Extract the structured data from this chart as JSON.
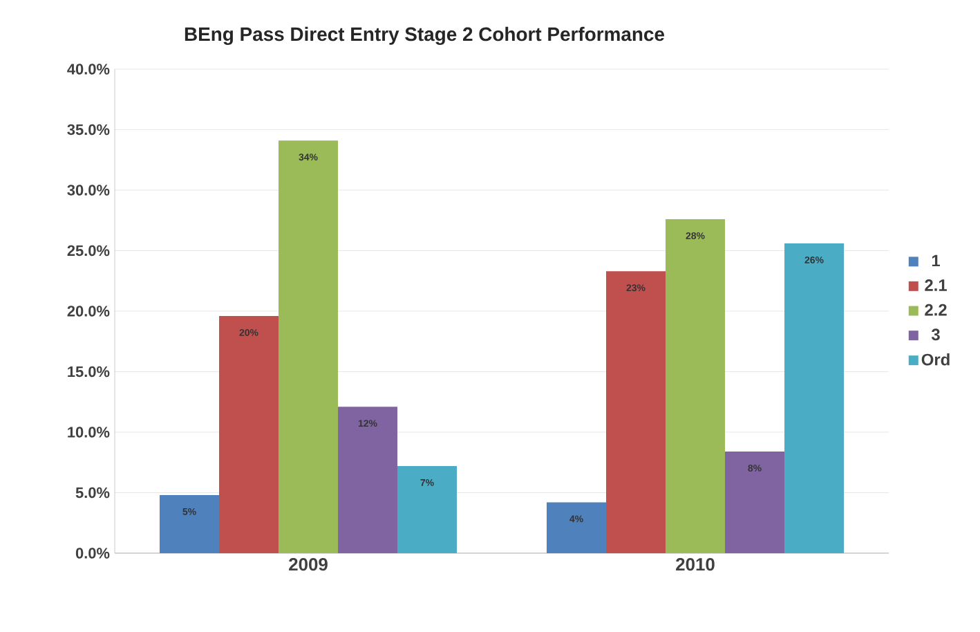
{
  "chart_data": {
    "type": "bar",
    "title": "BEng Pass Direct Entry Stage 2 Cohort Performance",
    "categories": [
      "2009",
      "2010"
    ],
    "series": [
      {
        "name": "1",
        "color": "#4f81bd",
        "values": [
          4.8,
          4.2
        ],
        "value_labels": [
          "5%",
          "4%"
        ]
      },
      {
        "name": "2.1",
        "color": "#c0504d",
        "values": [
          19.6,
          23.3
        ],
        "value_labels": [
          "20%",
          "23%"
        ]
      },
      {
        "name": "2.2",
        "color": "#9bbb59",
        "values": [
          34.1,
          27.6
        ],
        "value_labels": [
          "34%",
          "28%"
        ]
      },
      {
        "name": "3",
        "color": "#8064a2",
        "values": [
          12.1,
          8.4
        ],
        "value_labels": [
          "12%",
          "8%"
        ]
      },
      {
        "name": "Ord",
        "color": "#4bacc6",
        "values": [
          7.2,
          25.6
        ],
        "value_labels": [
          "7%",
          "26%"
        ]
      }
    ],
    "ylim": [
      0,
      40
    ],
    "yticks": [
      {
        "value": 0,
        "label": "0.0%"
      },
      {
        "value": 5,
        "label": "5.0%"
      },
      {
        "value": 10,
        "label": "10.0%"
      },
      {
        "value": 15,
        "label": "15.0%"
      },
      {
        "value": 20,
        "label": "20.0%"
      },
      {
        "value": 25,
        "label": "25.0%"
      },
      {
        "value": 30,
        "label": "30.0%"
      },
      {
        "value": 35,
        "label": "35.0%"
      },
      {
        "value": 40,
        "label": "40.0%"
      }
    ],
    "grid": "y",
    "legend": "right"
  }
}
